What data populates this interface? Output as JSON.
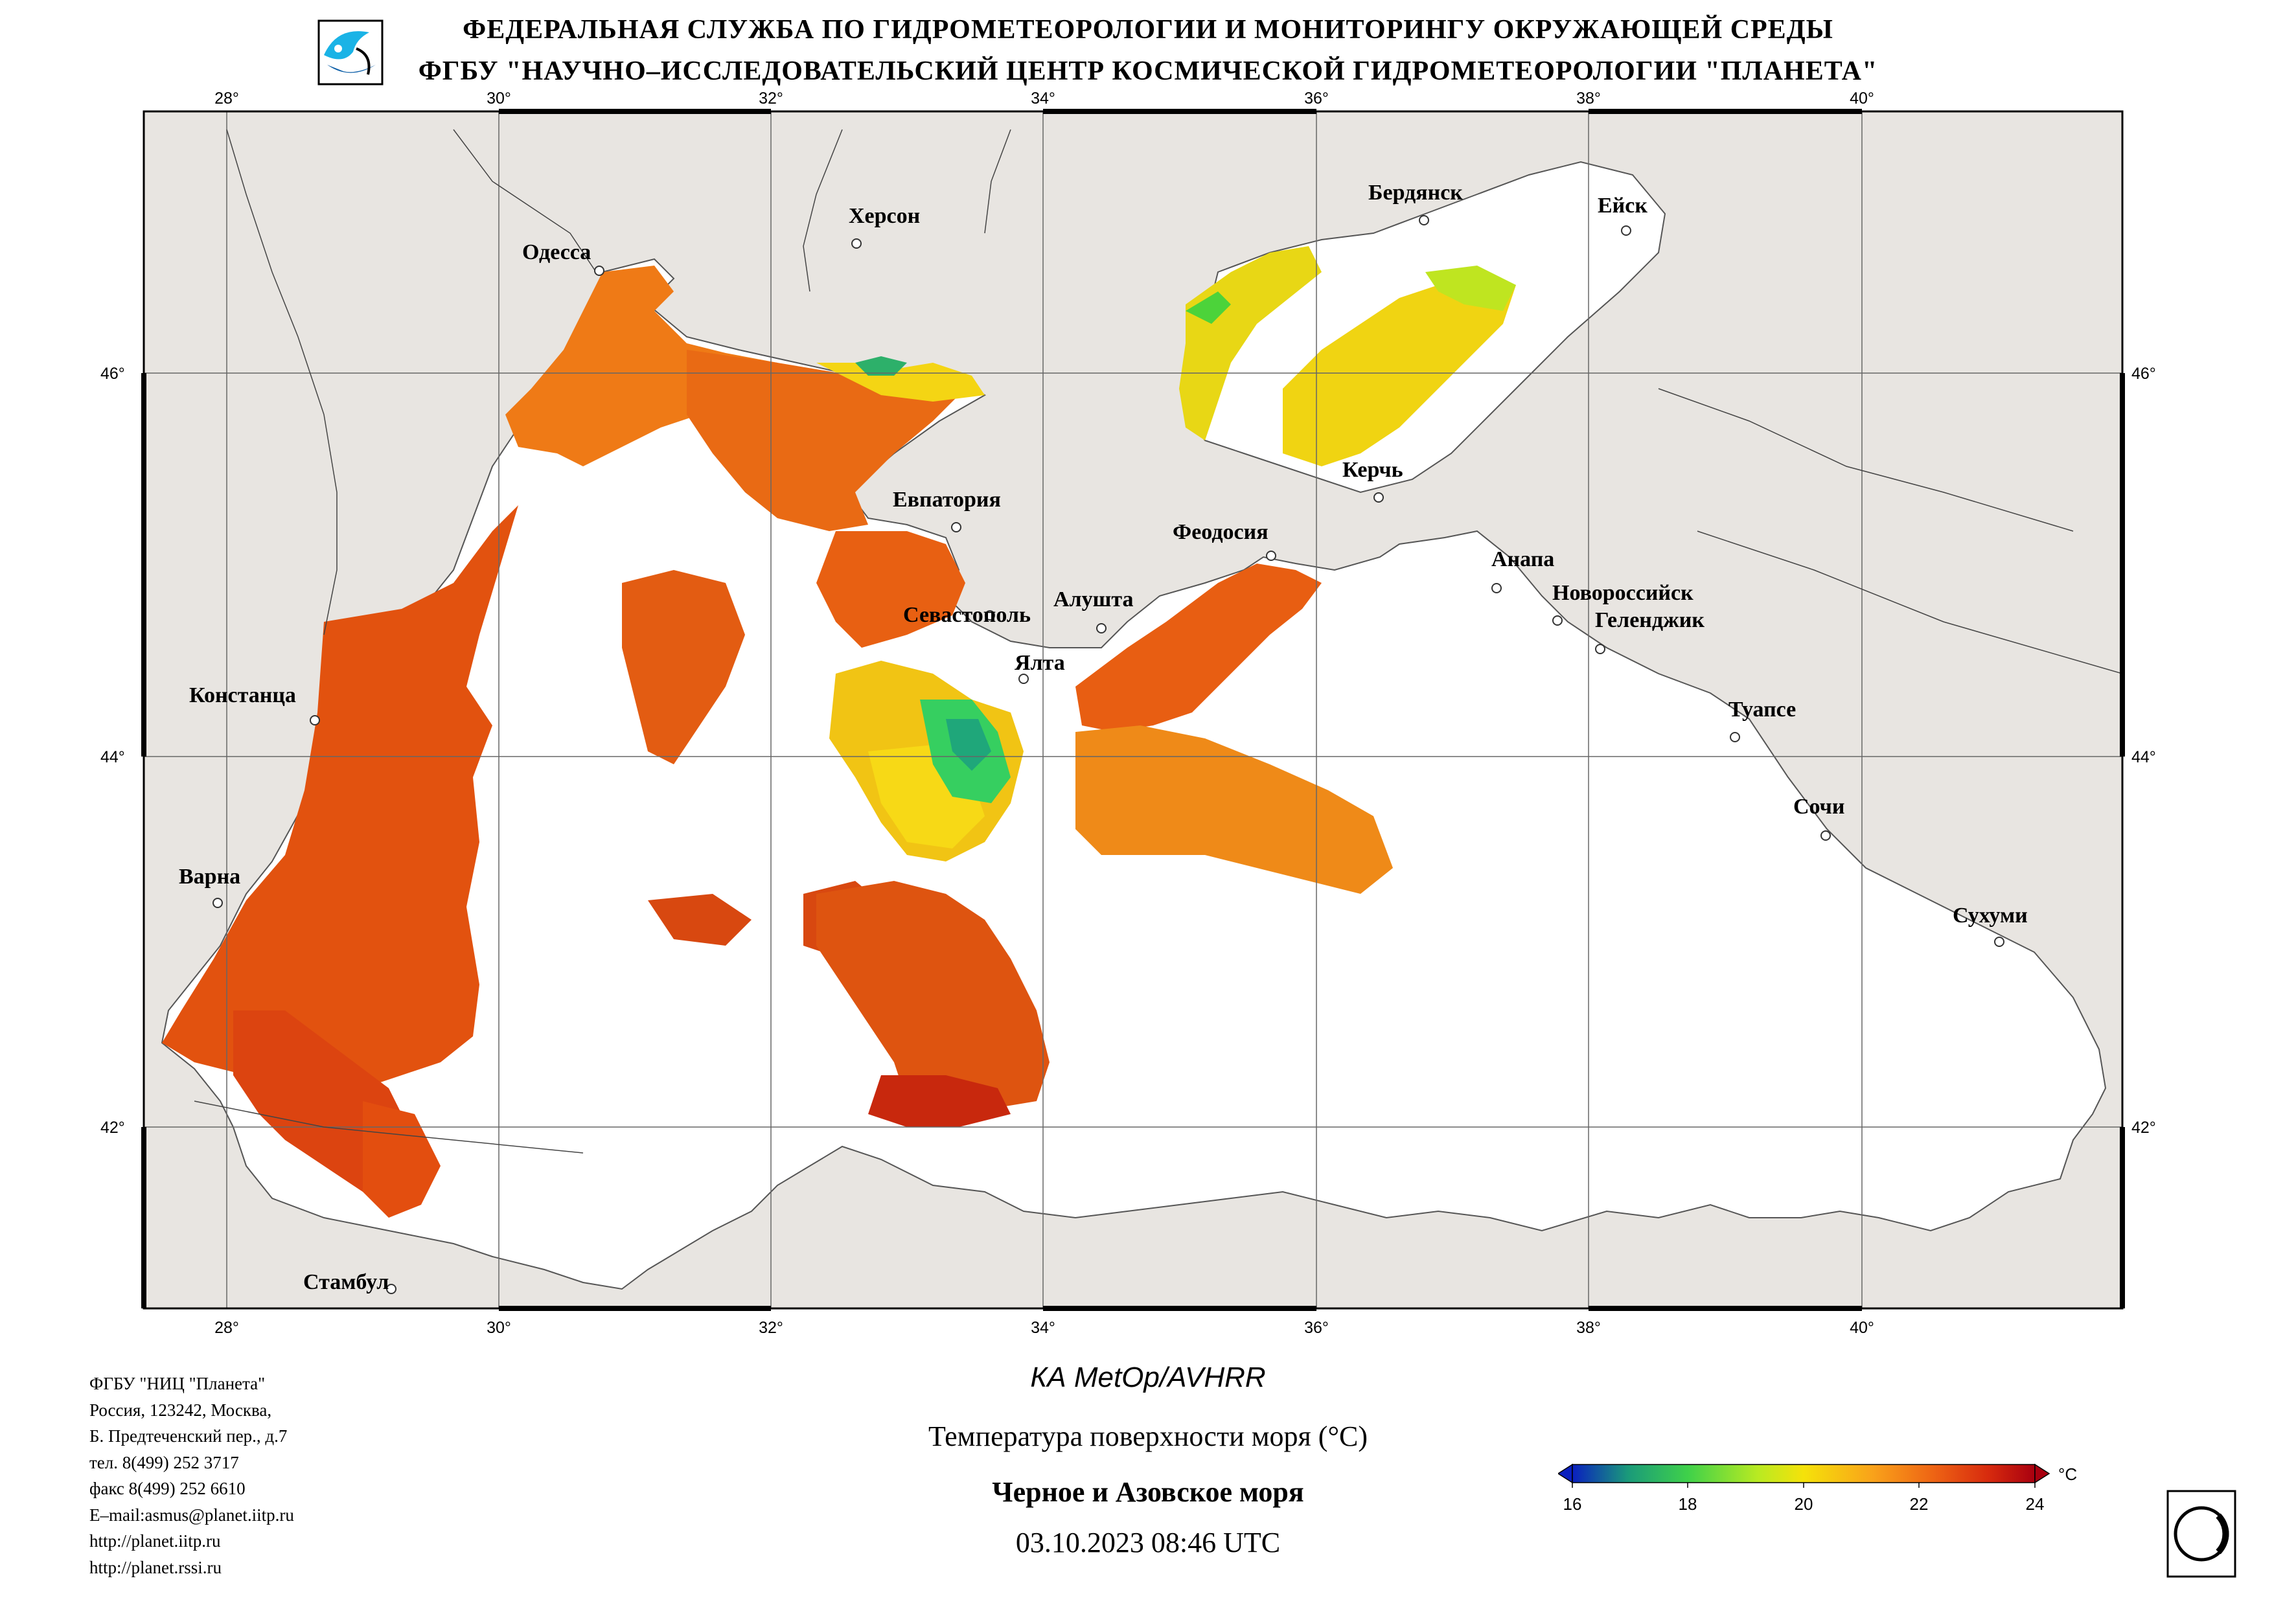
{
  "header": {
    "line1": "ФЕДЕРАЛЬНАЯ СЛУЖБА ПО ГИДРОМЕТЕОРОЛОГИИ И МОНИТОРИНГУ ОКРУЖАЮЩЕЙ СРЕДЫ",
    "line2": "ФГБУ \"НАУЧНО–ИССЛЕДОВАТЕЛЬСКИЙ ЦЕНТР КОСМИЧЕСКОЙ ГИДРОМЕТЕОРОЛОГИИ \"ПЛАНЕТА\""
  },
  "map": {
    "lon_ticks": [
      "28°",
      "30°",
      "32°",
      "34°",
      "36°",
      "38°",
      "40°"
    ],
    "lat_ticks": [
      "46°",
      "44°",
      "42°"
    ],
    "cities": [
      "Одесса",
      "Херсон",
      "Бердянск",
      "Ейск",
      "Евпатория",
      "Керчь",
      "Феодосия",
      "Анапа",
      "Новороссийск",
      "Геленджик",
      "Севастополь",
      "Алушта",
      "Ялта",
      "Констанца",
      "Туапсе",
      "Сочи",
      "Варна",
      "Сухуми",
      "Стамбул"
    ]
  },
  "footer": {
    "org_lines": [
      "ФГБУ \"НИЦ \"Планета\"",
      "Россия, 123242, Москва,",
      "Б. Предтеченский пер., д.7",
      "тел. 8(499) 252 3717",
      "факс 8(499) 252 6610",
      "E–mail:asmus@planet.iitp.ru",
      "http://planet.iitp.ru",
      "http://planet.rssi.ru"
    ],
    "satellite": "КА MetOp/AVHRR",
    "parameter": "Температура поверхности моря (°С)",
    "region": "Черное и Азовское моря",
    "datetime": "03.10.2023 08:46 UTC"
  },
  "colorbar": {
    "unit": "°C",
    "tick_labels": [
      "16",
      "18",
      "20",
      "22",
      "24"
    ],
    "min": 16,
    "max": 24,
    "colors": [
      "#0a1fbf",
      "#1a9a7a",
      "#3fd14a",
      "#b8ea22",
      "#f5e20a",
      "#f9a21a",
      "#ee6414",
      "#d72a0e",
      "#a8000f"
    ]
  },
  "colors": {
    "land": "#e8e5e1",
    "sea": "#ffffff",
    "grid": "#666666",
    "border": "#000000"
  }
}
